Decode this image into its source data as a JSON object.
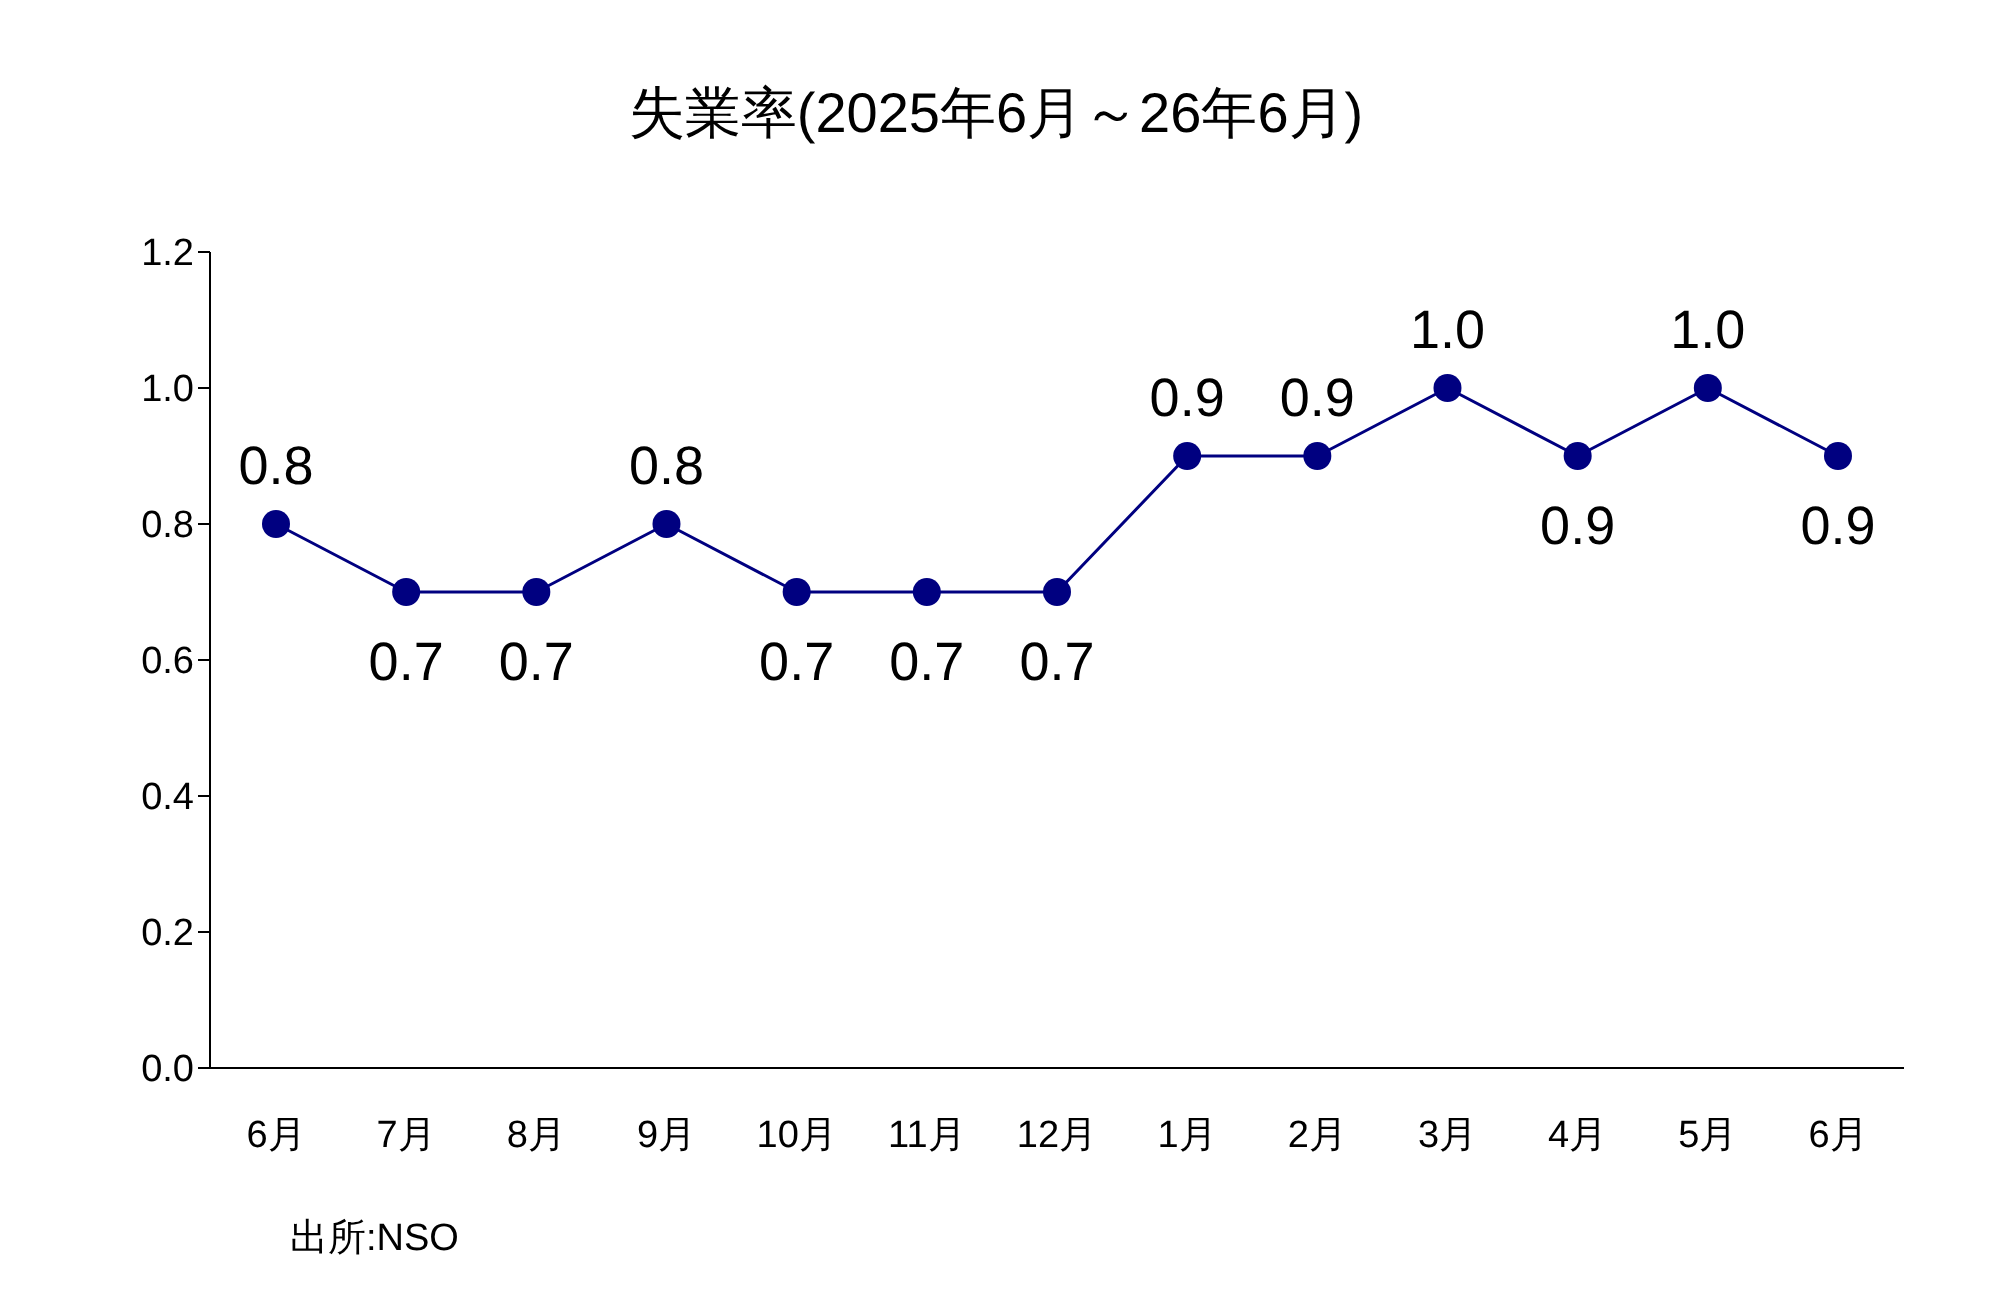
{
  "chart_data": {
    "type": "line",
    "title": "失業率(2025年6月～26年6月)",
    "categories": [
      "6月",
      "7月",
      "8月",
      "9月",
      "10月",
      "11月",
      "12月",
      "1月",
      "2月",
      "3月",
      "4月",
      "5月",
      "6月"
    ],
    "series": [
      {
        "color": "#000080",
        "values": [
          0.8,
          0.7,
          0.7,
          0.8,
          0.7,
          0.7,
          0.7,
          0.9,
          0.9,
          1.0,
          0.9,
          1.0,
          0.9
        ],
        "value_labels": [
          "0.8",
          "0.7",
          "0.7",
          "0.8",
          "0.7",
          "0.7",
          "0.7",
          "0.9",
          "0.9",
          "1.0",
          "0.9",
          "1.0",
          "0.9"
        ]
      }
    ],
    "ylim": [
      0,
      1.2
    ],
    "yticks": [
      {
        "value": 0,
        "label": "0.0"
      },
      {
        "value": 0.2,
        "label": "0.2"
      },
      {
        "value": 0.4,
        "label": "0.4"
      },
      {
        "value": 0.6,
        "label": "0.6"
      },
      {
        "value": 0.8,
        "label": "0.8"
      },
      {
        "value": 1.0,
        "label": "1.0"
      },
      {
        "value": 1.2,
        "label": "1.2"
      }
    ],
    "marker": "circle",
    "grid": false,
    "legend": false,
    "annotations": [
      "出所:NSO"
    ]
  }
}
